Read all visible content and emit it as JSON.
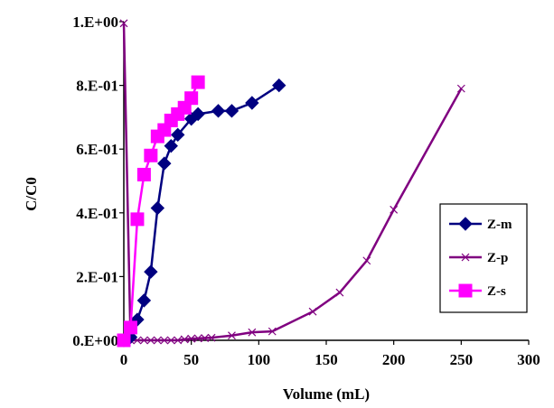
{
  "chart_data": {
    "type": "line",
    "xlabel": "Volume (mL)",
    "ylabel": "C/C0",
    "xlim": [
      0,
      300
    ],
    "ylim": [
      0,
      1
    ],
    "xticks": [
      0,
      50,
      100,
      150,
      200,
      250,
      300
    ],
    "xtick_labels": [
      "0",
      "50",
      "100",
      "150",
      "200",
      "250",
      "300"
    ],
    "yticks": [
      0,
      0.2,
      0.4,
      0.6,
      0.8,
      1.0
    ],
    "ytick_labels": [
      "0.E+00",
      "2.E-01",
      "4.E-01",
      "6.E-01",
      "8.E-01",
      "1.E+00"
    ],
    "grid": false,
    "legend_position": "right",
    "series": [
      {
        "name": "Z-m",
        "color": "#000080",
        "marker": "diamond",
        "x": [
          0,
          5,
          10,
          15,
          20,
          25,
          30,
          35,
          40,
          50,
          55,
          70,
          80,
          95,
          115
        ],
        "y": [
          0,
          0.01,
          0.065,
          0.125,
          0.215,
          0.415,
          0.555,
          0.61,
          0.645,
          0.695,
          0.71,
          0.72,
          0.72,
          0.745,
          0.8
        ]
      },
      {
        "name": "Z-p",
        "color": "#800080",
        "marker": "x",
        "x": [
          0,
          5,
          10,
          15,
          20,
          25,
          30,
          35,
          40,
          45,
          50,
          55,
          60,
          65,
          80,
          95,
          110,
          140,
          160,
          180,
          200,
          250
        ],
        "y": [
          0.995,
          0,
          0,
          0,
          0,
          0,
          0,
          0,
          0,
          0.003,
          0.005,
          0.006,
          0.007,
          0.008,
          0.015,
          0.025,
          0.028,
          0.09,
          0.15,
          0.25,
          0.41,
          0.79
        ]
      },
      {
        "name": "Z-s",
        "color": "#FF00FF",
        "marker": "square",
        "x": [
          0,
          5,
          10,
          15,
          20,
          25,
          30,
          35,
          40,
          45,
          50,
          55
        ],
        "y": [
          0,
          0.04,
          0.38,
          0.52,
          0.58,
          0.64,
          0.66,
          0.69,
          0.71,
          0.73,
          0.76,
          0.81
        ]
      }
    ]
  }
}
